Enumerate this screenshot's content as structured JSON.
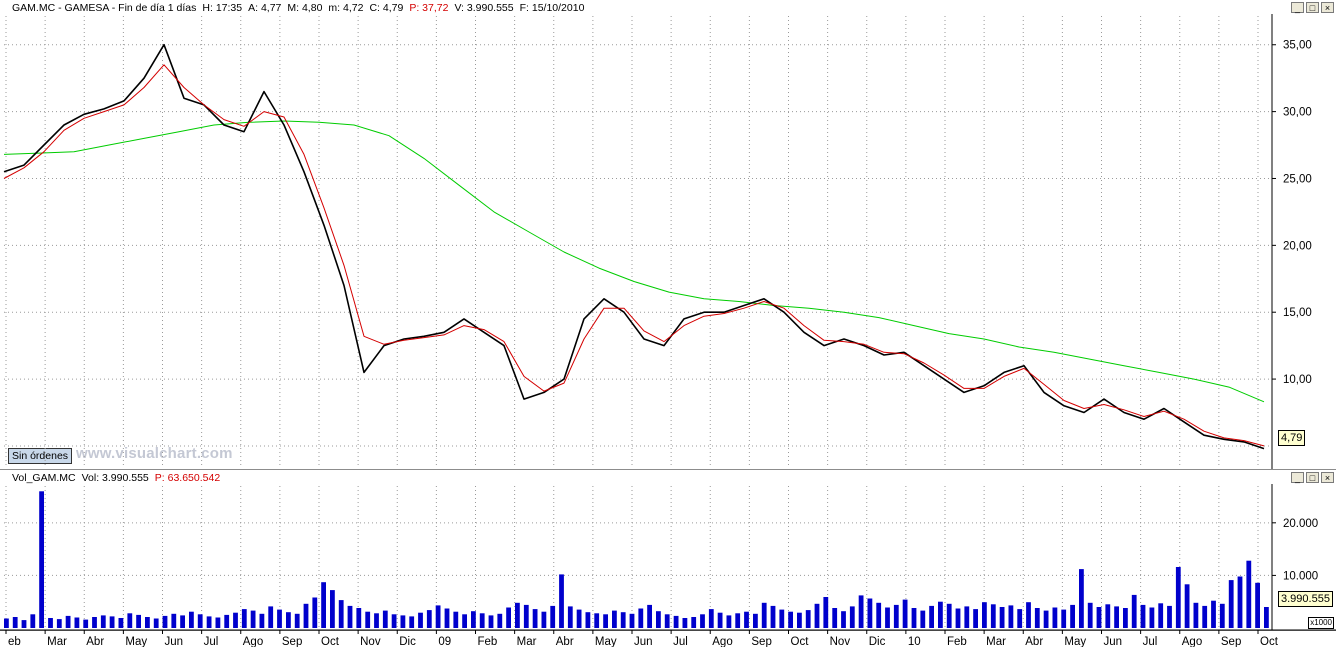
{
  "price_header": {
    "symbol": "GAM.MC - GAMESA - Fin de día 1 días",
    "h": "H: 17:35",
    "a": "A: 4,77",
    "m": "M: 4,80",
    "low": "m: 4,72",
    "c": "C: 4,79",
    "p": "P: 37,72",
    "v": "V: 3.990.555",
    "f": "F: 15/10/2010"
  },
  "volume_header": {
    "name": "Vol_GAM.MC",
    "vol": "Vol: 3.990.555",
    "p": "P: 63.650.542"
  },
  "sin_ordenes": "Sin órdenes",
  "watermark": "www.visualchart.com",
  "last_price": "4,79",
  "last_volume": "3.990.555",
  "volume_unit": "x1000",
  "window_buttons": [
    "_",
    "□",
    "×"
  ],
  "colors": {
    "price": "#000000",
    "sma_short": "#d40000",
    "sma_long": "#00cc00",
    "volume": "#0000cc",
    "grid": "#9a9a9a"
  },
  "chart_data": [
    {
      "type": "line",
      "title": "",
      "y_ticks": [
        "35,00",
        "30,00",
        "25,00",
        "20,00",
        "15,00",
        "10,00"
      ],
      "ylim": [
        3.5,
        37
      ],
      "grid": true,
      "x_labels": [
        "eb",
        "Mar",
        "Abr",
        "May",
        "Jun",
        "Jul",
        "Ago",
        "Sep",
        "Oct",
        "Nov",
        "Dic",
        "09",
        "Feb",
        "Mar",
        "Abr",
        "May",
        "Jun",
        "Jul",
        "Ago",
        "Sep",
        "Oct",
        "Nov",
        "Dic",
        "10",
        "Feb",
        "Mar",
        "Abr",
        "May",
        "Jun",
        "Jul",
        "Ago",
        "Sep",
        "Oct"
      ],
      "series": [
        {
          "key": "price",
          "values": [
            25.5,
            26.0,
            27.5,
            29.0,
            29.8,
            30.2,
            30.8,
            32.5,
            35.0,
            31.0,
            30.5,
            29.0,
            28.5,
            31.5,
            29.0,
            25.5,
            21.5,
            17.0,
            10.5,
            12.5,
            13.0,
            13.2,
            13.5,
            14.5,
            13.5,
            12.5,
            8.5,
            9.0,
            10.0,
            14.5,
            16.0,
            15.0,
            13.0,
            12.5,
            14.5,
            15.0,
            15.0,
            15.5,
            16.0,
            15.0,
            13.5,
            12.5,
            13.0,
            12.5,
            11.8,
            12.0,
            11.0,
            10.0,
            9.0,
            9.5,
            10.5,
            11.0,
            9.0,
            8.0,
            7.5,
            8.5,
            7.5,
            7.0,
            7.8,
            6.8,
            5.8,
            5.5,
            5.3,
            4.8
          ]
        },
        {
          "key": "sma_short",
          "values": [
            25.0,
            25.8,
            27.0,
            28.6,
            29.5,
            30.0,
            30.5,
            31.8,
            33.5,
            31.8,
            30.5,
            29.4,
            28.9,
            30.0,
            29.6,
            26.8,
            22.8,
            18.5,
            13.2,
            12.6,
            12.9,
            13.1,
            13.3,
            14.0,
            13.7,
            12.8,
            10.2,
            9.1,
            9.7,
            13.0,
            15.3,
            15.3,
            13.6,
            12.8,
            14.0,
            14.7,
            14.9,
            15.3,
            15.8,
            15.3,
            14.0,
            12.9,
            12.8,
            12.6,
            12.0,
            11.9,
            11.2,
            10.3,
            9.3,
            9.3,
            10.2,
            10.8,
            9.6,
            8.4,
            7.8,
            8.1,
            7.7,
            7.2,
            7.6,
            7.0,
            6.1,
            5.6,
            5.4,
            5.0
          ]
        },
        {
          "key": "sma_long",
          "values": [
            26.8,
            26.9,
            27.0,
            27.5,
            28.0,
            28.5,
            29.0,
            29.2,
            29.3,
            29.2,
            29.0,
            28.2,
            26.5,
            24.5,
            22.5,
            21.0,
            19.5,
            18.3,
            17.3,
            16.5,
            16.0,
            15.8,
            15.5,
            15.3,
            15.0,
            14.6,
            14.0,
            13.4,
            13.0,
            12.4,
            12.0,
            11.5,
            11.0,
            10.5,
            10.0,
            9.4,
            8.3
          ]
        }
      ]
    },
    {
      "type": "bar",
      "title": "",
      "y_ticks": [
        "20.000",
        "10.000"
      ],
      "ylim": [
        0,
        27000
      ],
      "grid": true,
      "series": [
        {
          "key": "volume",
          "values": [
            1800,
            2100,
            1500,
            2600,
            26000,
            1900,
            1700,
            2300,
            2000,
            1600,
            2100,
            2400,
            2200,
            1900,
            2800,
            2500,
            2100,
            1800,
            2300,
            2700,
            2400,
            3100,
            2600,
            2200,
            2000,
            2500,
            2900,
            3600,
            3300,
            2700,
            4100,
            3500,
            3000,
            2700,
            4600,
            5800,
            8700,
            7200,
            5300,
            4200,
            3800,
            3100,
            2800,
            3300,
            2600,
            2400,
            2200,
            2900,
            3400,
            4300,
            3700,
            3100,
            2600,
            3200,
            2800,
            2400,
            2700,
            3900,
            4800,
            4400,
            3600,
            3100,
            4200,
            10200,
            4100,
            3500,
            3000,
            2800,
            2600,
            3300,
            3000,
            2700,
            3700,
            4400,
            3200,
            2600,
            2300,
            1900,
            2100,
            2600,
            3600,
            2900,
            2400,
            2800,
            3100,
            2700,
            4800,
            4200,
            3500,
            3100,
            2900,
            3400,
            4600,
            5900,
            3800,
            3200,
            4100,
            6200,
            5600,
            4800,
            3900,
            4400,
            5400,
            3800,
            3300,
            4200,
            5000,
            4600,
            3700,
            4100,
            3600,
            4900,
            4500,
            4000,
            4300,
            3600,
            4900,
            3800,
            3300,
            3900,
            3500,
            4400,
            11200,
            4800,
            4000,
            4500,
            4100,
            3800,
            6300,
            4400,
            3900,
            4700,
            4200,
            11600,
            8300,
            4800,
            4200,
            5200,
            4600,
            9100,
            9800,
            12800,
            8600,
            4000
          ]
        }
      ]
    }
  ]
}
